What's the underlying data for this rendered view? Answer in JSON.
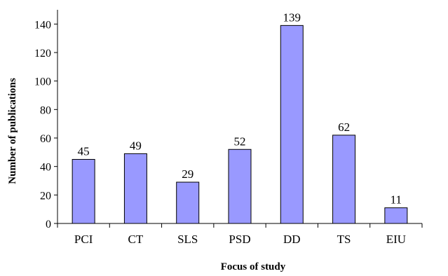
{
  "chart_data": {
    "type": "bar",
    "title": "",
    "xlabel": "Focus of study",
    "ylabel": "Number of publications",
    "categories": [
      "PCI",
      "CT",
      "SLS",
      "PSD",
      "DD",
      "TS",
      "EIU"
    ],
    "values": [
      45,
      49,
      29,
      52,
      139,
      62,
      11
    ],
    "data_labels": [
      "45",
      "49",
      "29",
      "52",
      "139",
      "62",
      "11"
    ],
    "ylim": [
      0,
      150
    ],
    "yticks": [
      0,
      20,
      40,
      60,
      80,
      100,
      120,
      140
    ],
    "ytick_labels": [
      "0",
      "20",
      "40",
      "60",
      "80",
      "100",
      "120",
      "140"
    ],
    "grid": false,
    "legend": "none",
    "bar_color": "#9999ff",
    "bar_edge_color": "#000000"
  }
}
